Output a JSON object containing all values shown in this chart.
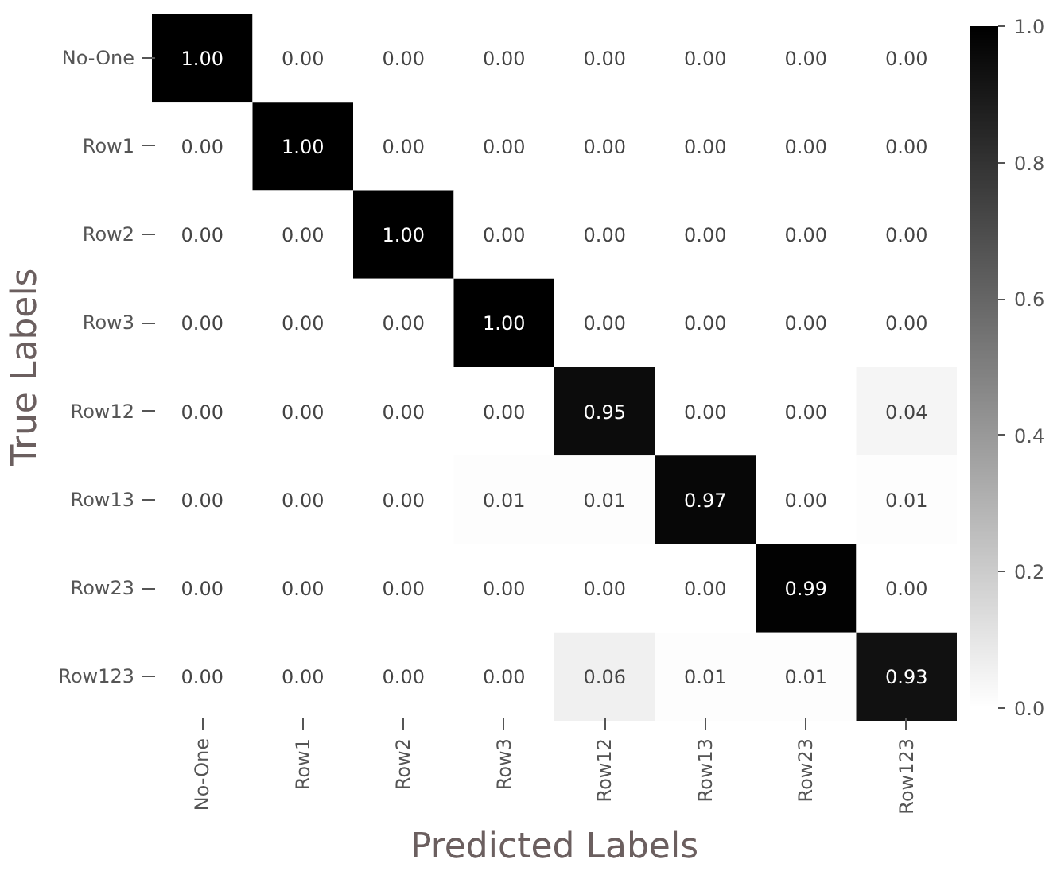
{
  "chart_data": {
    "type": "heatmap",
    "xlabel": "Predicted Labels",
    "ylabel": "True Labels",
    "categories": [
      "No-One",
      "Row1",
      "Row2",
      "Row3",
      "Row12",
      "Row13",
      "Row23",
      "Row123"
    ],
    "y_categories": [
      "No-One",
      "Row1",
      "Row2",
      "Row3",
      "Row12",
      "Row13",
      "Row23",
      "Row123"
    ],
    "cells": [
      [
        1.0,
        0,
        0,
        0,
        0,
        0,
        0,
        0
      ],
      [
        0,
        1.0,
        0,
        0,
        0,
        0,
        0,
        0
      ],
      [
        0,
        0,
        1.0,
        0,
        0,
        0,
        0,
        0
      ],
      [
        0,
        0,
        0,
        1.0,
        0,
        0,
        0,
        0
      ],
      [
        0,
        0,
        0,
        0,
        0.95,
        0,
        0,
        0.04
      ],
      [
        0,
        0,
        0,
        0.01,
        0.01,
        0.97,
        0,
        0.01
      ],
      [
        0,
        0,
        0,
        0,
        0,
        0,
        0.99,
        0
      ],
      [
        0,
        0,
        0,
        0,
        0.06,
        0.01,
        0.01,
        0.93
      ]
    ],
    "cell_labels": [
      [
        "1.00",
        "0.00",
        "0.00",
        "0.00",
        "0.00",
        "0.00",
        "0.00",
        "0.00"
      ],
      [
        "0.00",
        "1.00",
        "0.00",
        "0.00",
        "0.00",
        "0.00",
        "0.00",
        "0.00"
      ],
      [
        "0.00",
        "0.00",
        "1.00",
        "0.00",
        "0.00",
        "0.00",
        "0.00",
        "0.00"
      ],
      [
        "0.00",
        "0.00",
        "0.00",
        "1.00",
        "0.00",
        "0.00",
        "0.00",
        "0.00"
      ],
      [
        "0.00",
        "0.00",
        "0.00",
        "0.00",
        "0.95",
        "0.00",
        "0.00",
        "0.04"
      ],
      [
        "0.00",
        "0.00",
        "0.00",
        "0.01",
        "0.01",
        "0.97",
        "0.00",
        "0.01"
      ],
      [
        "0.00",
        "0.00",
        "0.00",
        "0.00",
        "0.00",
        "0.00",
        "0.99",
        "0.00"
      ],
      [
        "0.00",
        "0.00",
        "0.00",
        "0.00",
        "0.06",
        "0.01",
        "0.01",
        "0.93"
      ]
    ],
    "clim": [
      0,
      1.0
    ],
    "cticks": [
      {
        "value": 0,
        "label": "0.0"
      },
      {
        "value": 0.2,
        "label": "0.2"
      },
      {
        "value": 0.4,
        "label": "0.4"
      },
      {
        "value": 0.6,
        "label": "0.6"
      },
      {
        "value": 0.8,
        "label": "0.8"
      },
      {
        "value": 1.0,
        "label": "1.0"
      }
    ]
  }
}
